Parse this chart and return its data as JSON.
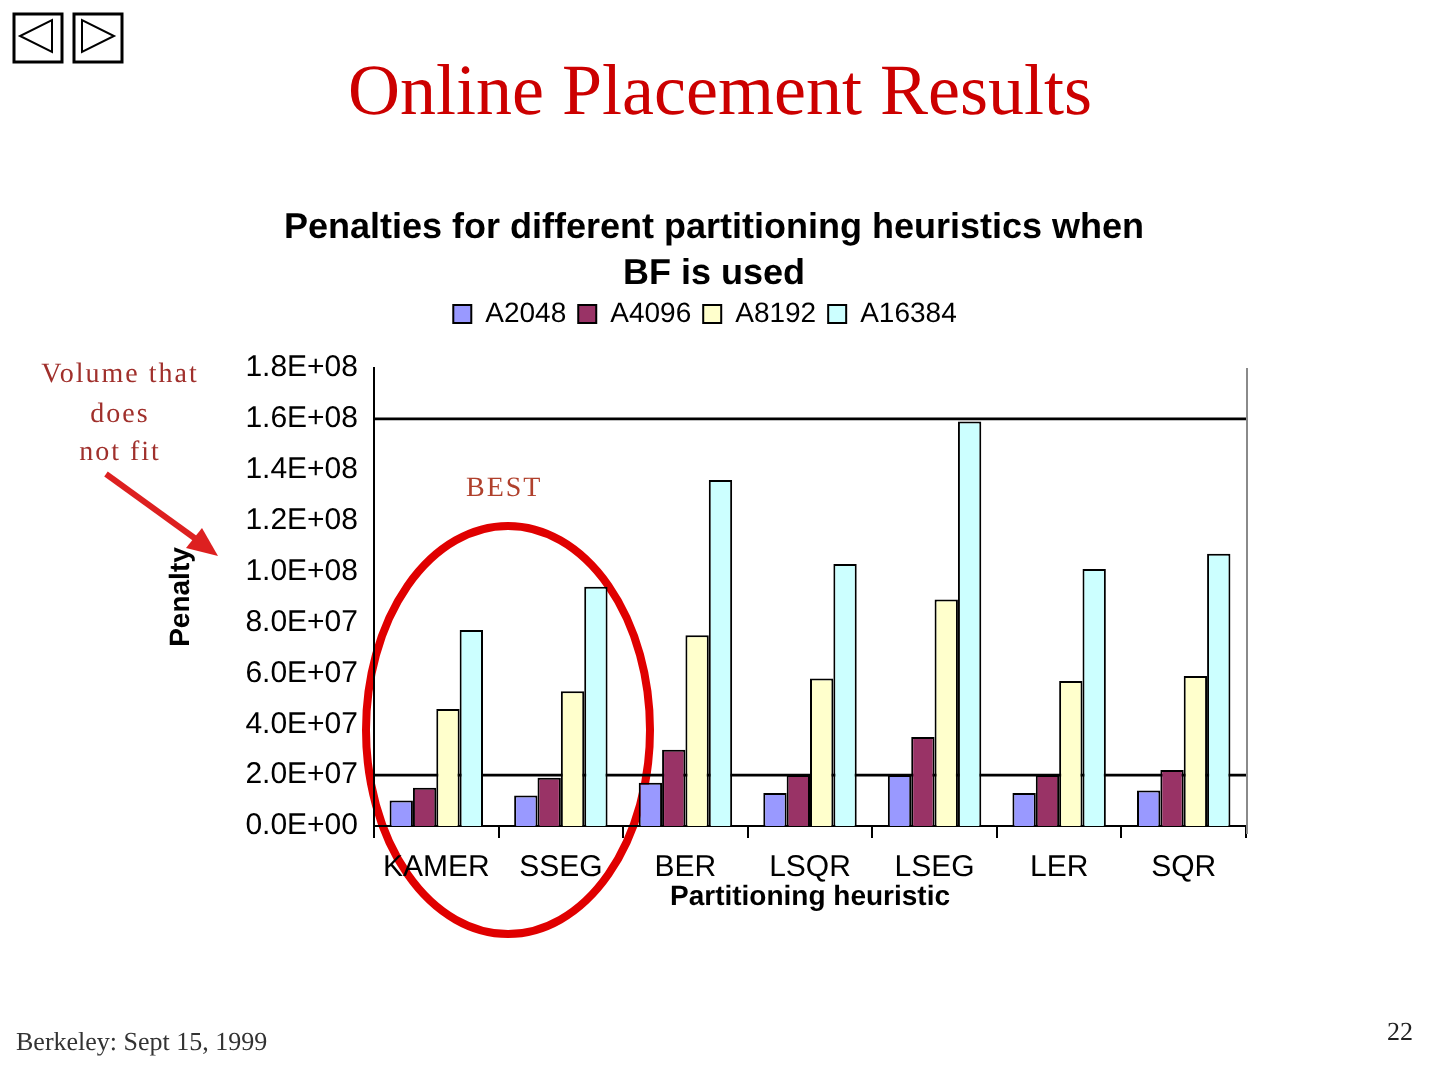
{
  "chart_data": {
    "type": "bar",
    "title": "Online Placement Results",
    "subtitle": "Penalties for different partitioning heuristics when BF is used",
    "xlabel": "Partitioning heuristic",
    "ylabel": "Penalty",
    "categories": [
      "KAMER",
      "SSEG",
      "BER",
      "LSQR",
      "LSEG",
      "LER",
      "SQR"
    ],
    "series": [
      {
        "name": "A2048",
        "color": "#9999ff",
        "values": [
          10000000,
          12000000,
          17000000,
          13000000,
          20000000,
          13000000,
          14000000
        ]
      },
      {
        "name": "A4096",
        "color": "#993366",
        "values": [
          15000000,
          19000000,
          30000000,
          20000000,
          35000000,
          20000000,
          22000000
        ]
      },
      {
        "name": "A8192",
        "color": "#ffffcc",
        "values": [
          46000000,
          53000000,
          75000000,
          58000000,
          89000000,
          57000000,
          59000000
        ]
      },
      {
        "name": "A16384",
        "color": "#ccffff",
        "values": [
          77000000,
          94000000,
          136000000,
          103000000,
          159000000,
          101000000,
          107000000
        ]
      }
    ],
    "ylim": [
      0,
      180000000
    ],
    "yticks": [
      {
        "value": 0,
        "label": "0.0E+00"
      },
      {
        "value": 20000000,
        "label": "2.0E+07"
      },
      {
        "value": 40000000,
        "label": "4.0E+07"
      },
      {
        "value": 60000000,
        "label": "6.0E+07"
      },
      {
        "value": 80000000,
        "label": "8.0E+07"
      },
      {
        "value": 100000000,
        "label": "1.0E+08"
      },
      {
        "value": 120000000,
        "label": "1.2E+08"
      },
      {
        "value": 140000000,
        "label": "1.4E+08"
      },
      {
        "value": 160000000,
        "label": "1.6E+08"
      },
      {
        "value": 180000000,
        "label": "1.8E+08"
      }
    ],
    "ref_lines": [
      {
        "axis": "y",
        "value": 20000000,
        "color": "#000000"
      },
      {
        "axis": "y",
        "value": 160000000,
        "color": "#000000"
      }
    ],
    "legend": "top",
    "annotations": [
      "Volume that\ndoes\nnot fit",
      "BEST",
      "Berkeley: Sept 15, 1999",
      "22"
    ]
  }
}
